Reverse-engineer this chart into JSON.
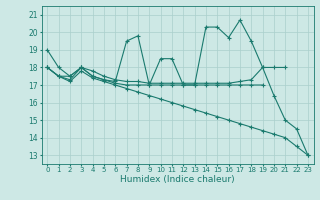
{
  "xlabel": "Humidex (Indice chaleur)",
  "bg_color": "#cde8e5",
  "grid_color": "#aacfcc",
  "line_color": "#1a7a6e",
  "xlim": [
    -0.5,
    23.5
  ],
  "ylim": [
    12.5,
    21.5
  ],
  "yticks": [
    13,
    14,
    15,
    16,
    17,
    18,
    19,
    20,
    21
  ],
  "xticks": [
    0,
    1,
    2,
    3,
    4,
    5,
    6,
    7,
    8,
    9,
    10,
    11,
    12,
    13,
    14,
    15,
    16,
    17,
    18,
    19,
    20,
    21,
    22,
    23
  ],
  "series": [
    [
      19.0,
      18.0,
      17.5,
      18.0,
      17.5,
      17.3,
      17.2,
      19.5,
      19.8,
      17.0,
      18.5,
      18.5,
      17.0,
      17.0,
      20.3,
      20.3,
      19.7,
      20.7,
      19.5,
      18.0,
      16.4,
      15.0,
      14.5,
      13.0
    ],
    [
      18.0,
      17.5,
      17.5,
      18.0,
      17.8,
      17.5,
      17.3,
      17.2,
      17.2,
      17.1,
      17.1,
      17.1,
      17.1,
      17.1,
      17.1,
      17.1,
      17.1,
      17.2,
      17.3,
      18.0,
      18.0,
      18.0,
      null,
      null
    ],
    [
      18.0,
      17.5,
      17.3,
      18.0,
      17.5,
      17.3,
      17.1,
      17.0,
      17.0,
      17.0,
      17.0,
      17.0,
      17.0,
      17.0,
      17.0,
      17.0,
      17.0,
      17.0,
      17.0,
      17.0,
      null,
      null,
      null,
      null
    ],
    [
      18.0,
      17.5,
      17.2,
      17.8,
      17.4,
      17.2,
      17.0,
      16.8,
      16.6,
      16.4,
      16.2,
      16.0,
      15.8,
      15.6,
      15.4,
      15.2,
      15.0,
      14.8,
      14.6,
      14.4,
      14.2,
      14.0,
      13.5,
      13.0
    ]
  ]
}
